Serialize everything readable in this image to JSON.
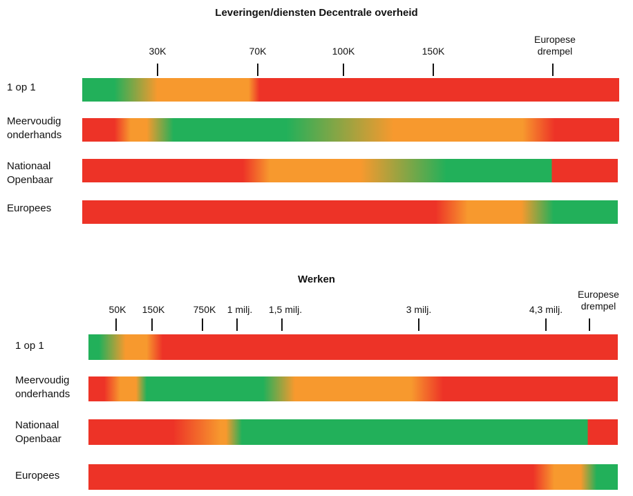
{
  "colors": {
    "green": "#22b05a",
    "orange": "#f7992e",
    "red": "#ed3327"
  },
  "sections": [
    {
      "title": "Leveringen/diensten Decentrale overheid",
      "ticks": [
        {
          "lines": [
            "30K"
          ]
        },
        {
          "lines": [
            "70K"
          ]
        },
        {
          "lines": [
            "100K"
          ]
        },
        {
          "lines": [
            "150K"
          ]
        },
        {
          "lines": [
            "Europese",
            "drempel"
          ]
        }
      ],
      "rows": [
        {
          "lines": [
            "1 op 1"
          ]
        },
        {
          "lines": [
            "Meervoudig",
            "onderhands"
          ]
        },
        {
          "lines": [
            "Nationaal",
            "Openbaar"
          ]
        },
        {
          "lines": [
            "Europees"
          ]
        }
      ]
    },
    {
      "title": "Werken",
      "ticks": [
        {
          "lines": [
            "50K"
          ]
        },
        {
          "lines": [
            "150K"
          ]
        },
        {
          "lines": [
            "750K"
          ]
        },
        {
          "lines": [
            "1 milj."
          ]
        },
        {
          "lines": [
            "1,5 milj."
          ]
        },
        {
          "lines": [
            "3 milj."
          ]
        },
        {
          "lines": [
            "4,3 milj."
          ]
        },
        {
          "lines": [
            "Europese",
            "drempel"
          ]
        }
      ],
      "rows": [
        {
          "lines": [
            "1 op 1"
          ]
        },
        {
          "lines": [
            "Meervoudig",
            "onderhands"
          ]
        },
        {
          "lines": [
            "Nationaal",
            "Openbaar"
          ]
        },
        {
          "lines": [
            "Europees"
          ]
        }
      ]
    }
  ]
}
